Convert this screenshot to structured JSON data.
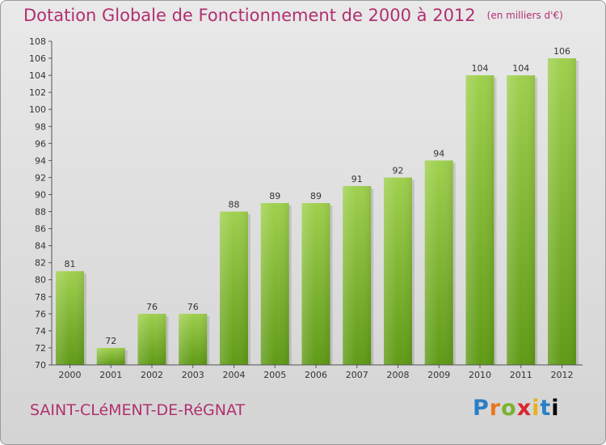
{
  "header": {
    "title": "Dotation Globale de Fonctionnement de 2000 à 2012",
    "subtitle": "(en milliers d'€)"
  },
  "footer": {
    "commune": "SAINT-CLéMENT-DE-RéGNAT",
    "logo_letters": [
      "P",
      "r",
      "o",
      "x",
      "i",
      "t",
      "i"
    ]
  },
  "colors": {
    "title": "#b03070",
    "bar_light": "#9fd04e",
    "bar_dark": "#5f9a16"
  },
  "chart_data": {
    "type": "bar",
    "title": "Dotation Globale de Fonctionnement de 2000 à 2012",
    "subtitle": "(en milliers d'€)",
    "categories": [
      "2000",
      "2001",
      "2002",
      "2003",
      "2004",
      "2005",
      "2006",
      "2007",
      "2008",
      "2009",
      "2010",
      "2011",
      "2012"
    ],
    "values": [
      81,
      72,
      76,
      76,
      88,
      89,
      89,
      91,
      92,
      94,
      104,
      104,
      106
    ],
    "ylim": [
      70,
      108
    ],
    "yticks": [
      70,
      72,
      74,
      76,
      78,
      80,
      82,
      84,
      86,
      88,
      90,
      92,
      94,
      96,
      98,
      100,
      102,
      104,
      106,
      108
    ],
    "grid": false,
    "legend": "none"
  }
}
